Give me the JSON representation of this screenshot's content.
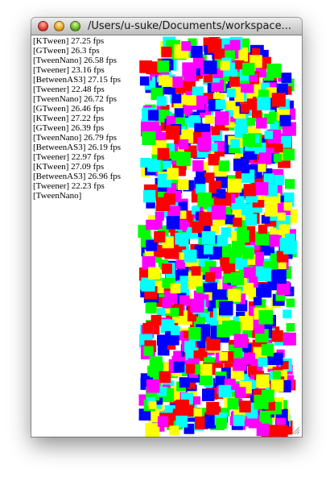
{
  "window": {
    "title": "/Users/u-suke/Documents/workspace..."
  },
  "log": [
    "[KTween] 27.25 fps",
    "[GTween] 26.3 fps",
    "[TweenNano] 26.58 fps",
    "[Tweener] 23.16 fps",
    "[BetweenAS3] 27.15 fps",
    "[Tweener] 22.48 fps",
    "[TweenNano] 26.72 fps",
    "[GTween] 26.46 fps",
    "[KTween] 27.22 fps",
    "[GTween] 26.39 fps",
    "[TweenNano] 26.79 fps",
    "[BetweenAS3] 26.19 fps",
    "[Tweener] 22.97 fps",
    "[KTween] 27.09 fps",
    "[BetweenAS3] 26.96 fps",
    "[Tweener] 22.23 fps",
    "[TweenNano]"
  ],
  "colors": {
    "square_palette": [
      "#ff0000",
      "#00ff00",
      "#0000ff",
      "#ffff00",
      "#ff00ff",
      "#00ffff"
    ]
  },
  "icons": {
    "close": "close-icon",
    "minimize": "minimize-icon",
    "zoom": "zoom-icon",
    "resize": "resize-grip-icon"
  }
}
